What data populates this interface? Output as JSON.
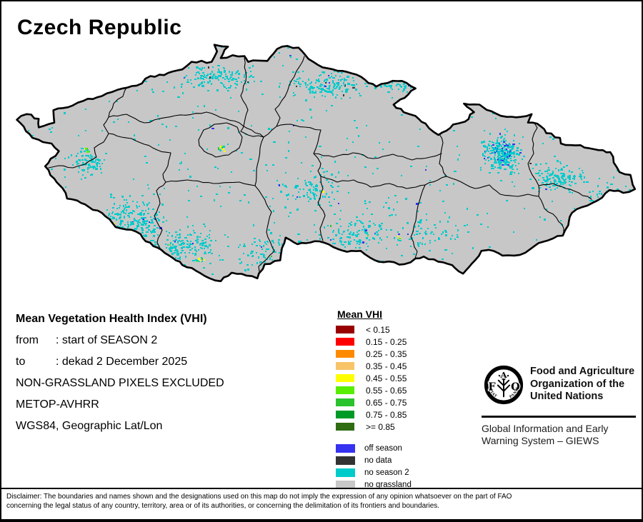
{
  "title": "Czech Republic",
  "info": {
    "heading": "Mean Vegetation Health Index (VHI)",
    "rows": [
      {
        "label": "from",
        "value": ": start of SEASON 2"
      },
      {
        "label": "to",
        "value": ": dekad 2 December 2025"
      }
    ],
    "lines": [
      "NON-GRASSLAND PIXELS EXCLUDED",
      "METOP-AVHRR",
      "WGS84, Geographic Lat/Lon"
    ]
  },
  "legend": {
    "title": "Mean VHI",
    "classes": [
      {
        "label": "< 0.15",
        "color": "#990000"
      },
      {
        "label": "0.15 - 0.25",
        "color": "#FE0000"
      },
      {
        "label": "0.25 - 0.35",
        "color": "#FF8A00"
      },
      {
        "label": "0.35 - 0.45",
        "color": "#F8C468"
      },
      {
        "label": "0.45 - 0.55",
        "color": "#FFFF00"
      },
      {
        "label": "0.55 - 0.65",
        "color": "#58EE00"
      },
      {
        "label": "0.65 - 0.75",
        "color": "#2BC32B"
      },
      {
        "label": "0.75 - 0.85",
        "color": "#019A26"
      },
      {
        "label": ">= 0.85",
        "color": "#2F6C12"
      }
    ],
    "special": [
      {
        "label": "off season",
        "color": "#3633F0"
      },
      {
        "label": "no data",
        "color": "#333333"
      },
      {
        "label": "no season 2",
        "color": "#00CBCB"
      },
      {
        "label": "no grassland",
        "color": "#C8C8C8"
      }
    ]
  },
  "fao": {
    "org_lines": [
      "Food and Agriculture",
      "Organization of the",
      "United Nations"
    ],
    "giews_lines": [
      "Global Information and Early",
      "Warning System – GIEWS"
    ],
    "logo": {
      "letters": [
        "F",
        "A",
        "O"
      ],
      "motto_left": "FIAT",
      "motto_right": "PANIS"
    }
  },
  "disclaimer": [
    "Disclaimer: The boundaries and names shown and the designations used on this map do not imply the expression of any opinion whatsoever on the part of FAO",
    "concerning the legal status of any country, territory, area or of its authorities, or concerning the delimitation of its frontiers and boundaries."
  ],
  "map": {
    "region": "Czech Republic",
    "colors": {
      "land": "#C7C7C7",
      "border": "#000000",
      "region_line": "#000000",
      "no_season_2": "#00CBCB",
      "off_season": "#3633F0",
      "no_data": "#3A3A3A",
      "accent_yellow": "#FFFF00",
      "accent_green": "#58EE00",
      "accent_green2": "#2BC32B"
    }
  }
}
